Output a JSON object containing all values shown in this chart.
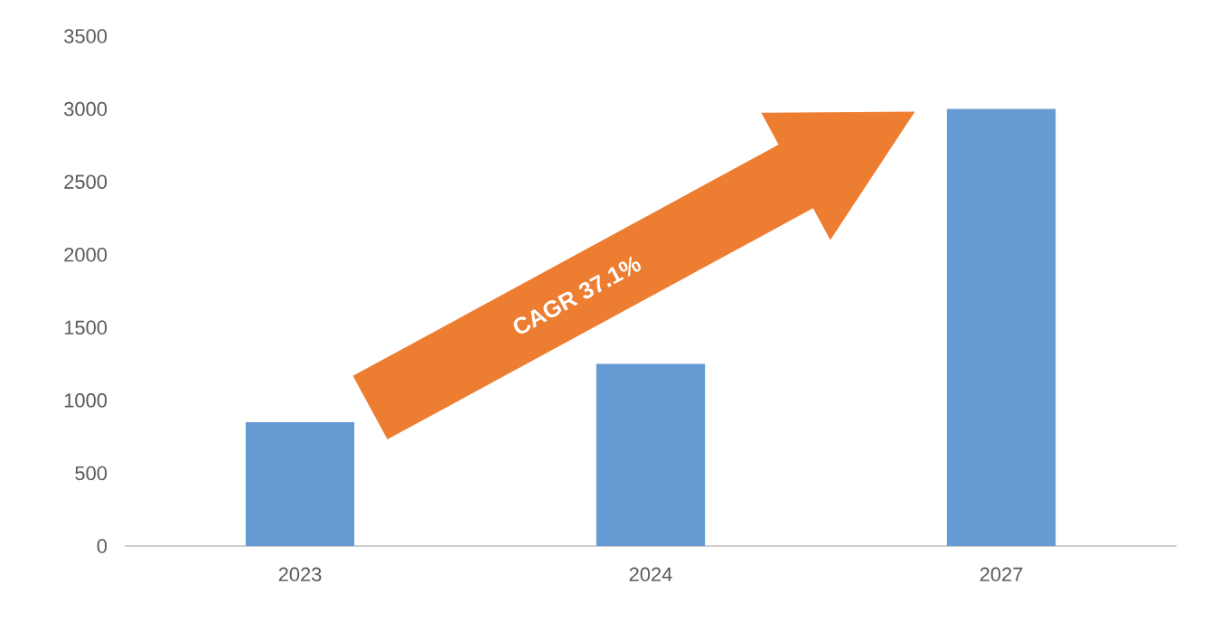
{
  "chart_data": {
    "type": "bar",
    "categories": [
      "2023",
      "2024",
      "2027"
    ],
    "values": [
      850,
      1250,
      3000
    ],
    "color": "#659ad2",
    "ylim": [
      0,
      3500
    ],
    "yticks": [
      0,
      500,
      1000,
      1500,
      2000,
      2500,
      3000,
      3500
    ],
    "annotations": [
      "CAGR 37.1%"
    ]
  }
}
